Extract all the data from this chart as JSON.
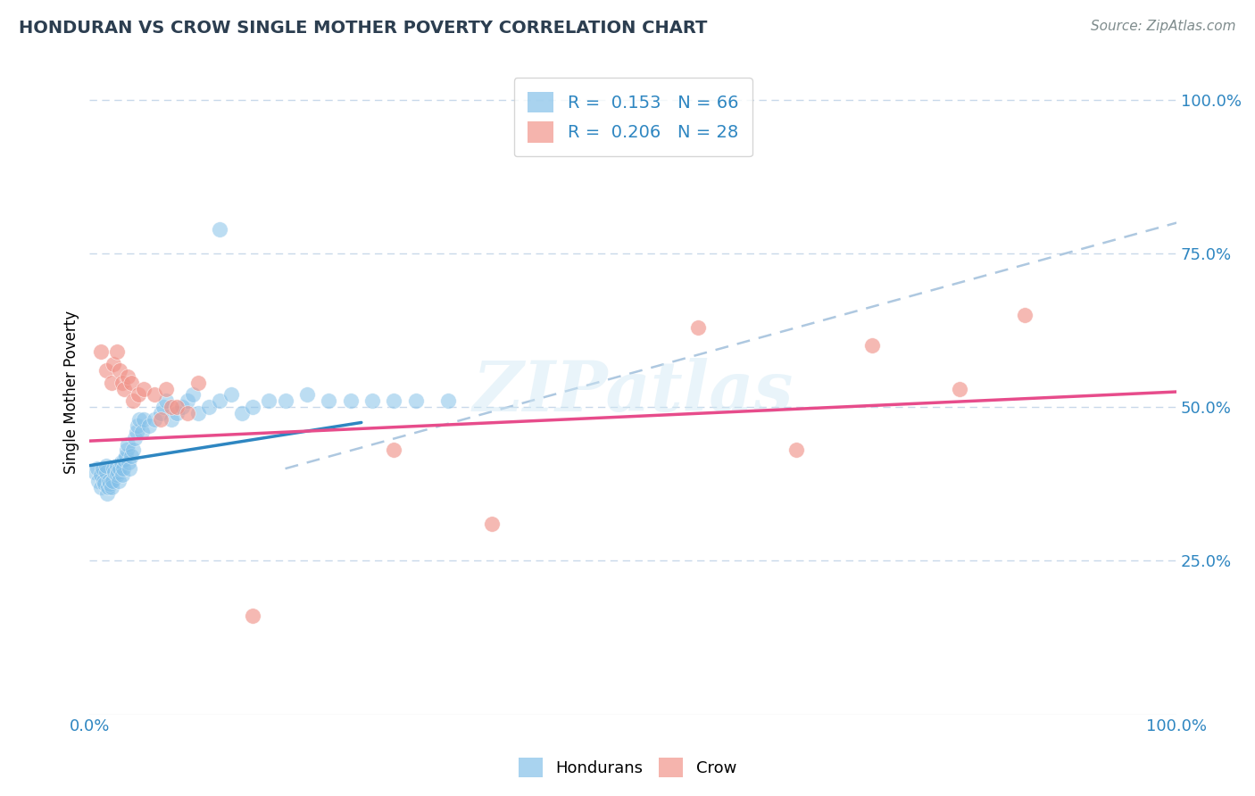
{
  "title": "HONDURAN VS CROW SINGLE MOTHER POVERTY CORRELATION CHART",
  "source": "Source: ZipAtlas.com",
  "ylabel": "Single Mother Poverty",
  "legend_label1": "Hondurans",
  "legend_label2": "Crow",
  "r1": 0.153,
  "n1": 66,
  "r2": 0.206,
  "n2": 28,
  "blue_color": "#85c1e9",
  "pink_color": "#f1948a",
  "blue_line_color": "#2e86c1",
  "pink_line_color": "#e74c8b",
  "dashed_line_color": "#aec8e0",
  "ytick_labels": [
    "25.0%",
    "50.0%",
    "75.0%",
    "100.0%"
  ],
  "ytick_values": [
    0.25,
    0.5,
    0.75,
    1.0
  ],
  "honduran_x": [
    0.005,
    0.007,
    0.008,
    0.01,
    0.01,
    0.012,
    0.013,
    0.014,
    0.015,
    0.015,
    0.016,
    0.017,
    0.018,
    0.019,
    0.02,
    0.021,
    0.022,
    0.023,
    0.025,
    0.025,
    0.026,
    0.027,
    0.028,
    0.029,
    0.03,
    0.031,
    0.032,
    0.033,
    0.034,
    0.035,
    0.036,
    0.037,
    0.038,
    0.04,
    0.042,
    0.043,
    0.044,
    0.046,
    0.048,
    0.05,
    0.055,
    0.06,
    0.065,
    0.068,
    0.07,
    0.075,
    0.08,
    0.085,
    0.09,
    0.095,
    0.1,
    0.11,
    0.12,
    0.13,
    0.14,
    0.15,
    0.165,
    0.18,
    0.2,
    0.22,
    0.24,
    0.26,
    0.28,
    0.3,
    0.33,
    0.12
  ],
  "honduran_y": [
    0.395,
    0.4,
    0.38,
    0.37,
    0.39,
    0.4,
    0.38,
    0.375,
    0.395,
    0.405,
    0.36,
    0.37,
    0.38,
    0.375,
    0.37,
    0.38,
    0.4,
    0.395,
    0.39,
    0.405,
    0.395,
    0.38,
    0.4,
    0.41,
    0.39,
    0.4,
    0.415,
    0.42,
    0.43,
    0.44,
    0.41,
    0.4,
    0.42,
    0.43,
    0.45,
    0.46,
    0.47,
    0.48,
    0.46,
    0.48,
    0.47,
    0.48,
    0.49,
    0.5,
    0.51,
    0.48,
    0.49,
    0.5,
    0.51,
    0.52,
    0.49,
    0.5,
    0.51,
    0.52,
    0.49,
    0.5,
    0.51,
    0.51,
    0.52,
    0.51,
    0.51,
    0.51,
    0.51,
    0.51,
    0.51,
    0.79
  ],
  "crow_x": [
    0.01,
    0.015,
    0.02,
    0.022,
    0.025,
    0.028,
    0.03,
    0.032,
    0.035,
    0.038,
    0.04,
    0.045,
    0.05,
    0.06,
    0.065,
    0.07,
    0.075,
    0.08,
    0.09,
    0.1,
    0.15,
    0.28,
    0.37,
    0.56,
    0.65,
    0.72,
    0.8,
    0.86
  ],
  "crow_y": [
    0.59,
    0.56,
    0.54,
    0.57,
    0.59,
    0.56,
    0.54,
    0.53,
    0.55,
    0.54,
    0.51,
    0.52,
    0.53,
    0.52,
    0.48,
    0.53,
    0.5,
    0.5,
    0.49,
    0.54,
    0.16,
    0.43,
    0.31,
    0.63,
    0.43,
    0.6,
    0.53,
    0.65
  ],
  "background_color": "#ffffff",
  "grid_color": "#c8d8ea",
  "watermark": "ZIPatlas",
  "xlim": [
    0.0,
    1.0
  ],
  "ylim": [
    0.0,
    1.05
  ],
  "blue_line_x": [
    0.0,
    0.25
  ],
  "blue_line_y_start": 0.405,
  "blue_line_y_end": 0.475,
  "pink_line_x": [
    0.0,
    1.0
  ],
  "pink_line_y_start": 0.445,
  "pink_line_y_end": 0.525,
  "dashed_line_x": [
    0.18,
    1.0
  ],
  "dashed_line_y_start": 0.4,
  "dashed_line_y_end": 0.8
}
